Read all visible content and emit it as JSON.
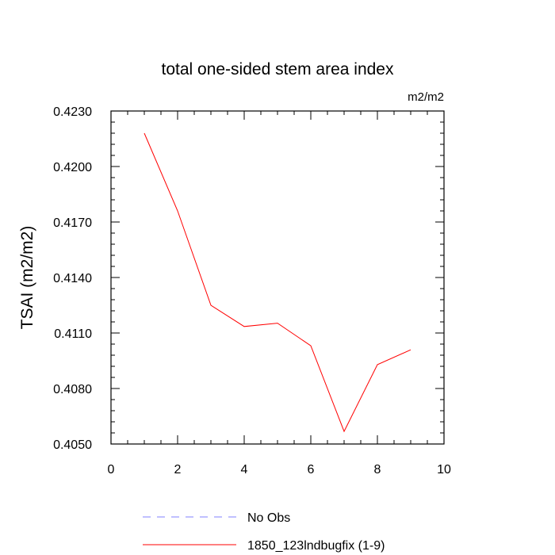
{
  "chart_data": {
    "type": "line",
    "title": "total one-sided stem area index",
    "units": "m2/m2",
    "xlabel": "",
    "ylabel": "TSAI  (m2/m2)",
    "xlim": [
      0,
      10
    ],
    "ylim": [
      0.405,
      0.423
    ],
    "x_ticks": [
      0,
      2,
      4,
      6,
      8,
      10
    ],
    "x_tick_labels": [
      "0",
      "2",
      "4",
      "6",
      "8",
      "10"
    ],
    "y_ticks": [
      0.405,
      0.408,
      0.411,
      0.414,
      0.417,
      0.42,
      0.423
    ],
    "y_tick_labels": [
      "0.4050",
      "0.4080",
      "0.4110",
      "0.4140",
      "0.4170",
      "0.4200",
      "0.4230"
    ],
    "grid": false,
    "legend_position": "bottom",
    "series": [
      {
        "name": "No Obs",
        "color": "#8080ff",
        "dash": "dashed",
        "x": [],
        "y": []
      },
      {
        "name": "1850_123lndbugfix (1-9)",
        "color": "#ff0000",
        "dash": "solid",
        "x": [
          1,
          2,
          3,
          4,
          5,
          6,
          7,
          8,
          9
        ],
        "y": [
          0.4218,
          0.4176,
          0.4125,
          0.41135,
          0.41153,
          0.41031,
          0.40568,
          0.40929,
          0.41009
        ]
      }
    ]
  }
}
